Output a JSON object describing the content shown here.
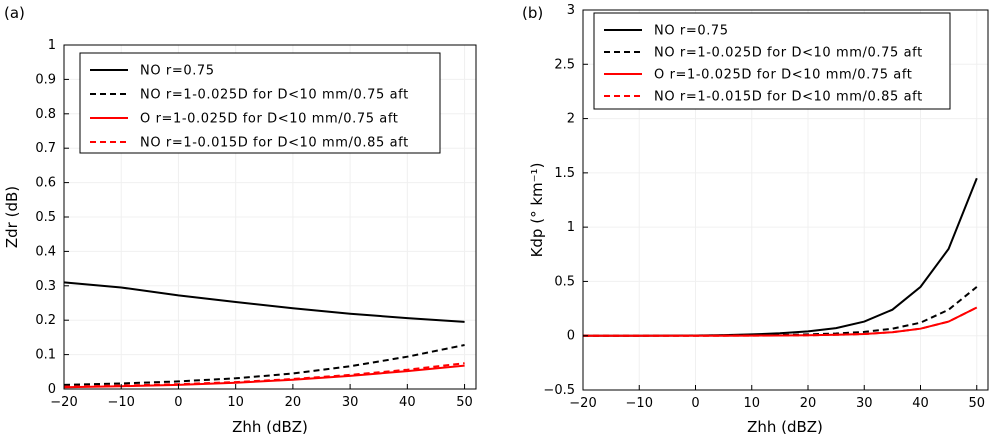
{
  "chart_data": [
    {
      "type": "line",
      "panel_label": "(a)",
      "xlabel": "Zhh (dBZ)",
      "ylabel": "Zdr (dB)",
      "xlim": [
        -20,
        52
      ],
      "ylim": [
        0,
        1
      ],
      "xticks": [
        -20,
        -10,
        0,
        10,
        20,
        30,
        40,
        50
      ],
      "yticks": [
        0,
        0.1,
        0.2,
        0.3,
        0.4,
        0.5,
        0.6,
        0.7,
        0.8,
        0.9,
        1
      ],
      "grid": true,
      "legend_position": "top-right",
      "x": [
        -20,
        -10,
        0,
        10,
        20,
        30,
        40,
        50
      ],
      "series": [
        {
          "name": "NO r=0.75",
          "color": "#000000",
          "dash": "solid",
          "values": [
            0.31,
            0.295,
            0.272,
            0.253,
            0.235,
            0.219,
            0.206,
            0.195
          ]
        },
        {
          "name": "NO r=1-0.025D for D<10 mm/0.75 aft",
          "color": "#000000",
          "dash": "dashed",
          "values": [
            0.012,
            0.016,
            0.022,
            0.031,
            0.045,
            0.066,
            0.094,
            0.128
          ]
        },
        {
          "name": "O r=1-0.025D for D<10 mm/0.75 aft",
          "color": "#ff0000",
          "dash": "solid",
          "values": [
            0.005,
            0.008,
            0.012,
            0.018,
            0.027,
            0.038,
            0.052,
            0.068
          ]
        },
        {
          "name": "NO r=1-0.015D for D<10 mm/0.85 aft",
          "color": "#ff0000",
          "dash": "dashed",
          "values": [
            0.007,
            0.01,
            0.014,
            0.02,
            0.029,
            0.041,
            0.056,
            0.075
          ]
        }
      ]
    },
    {
      "type": "line",
      "panel_label": "(b)",
      "xlabel": "Zhh (dBZ)",
      "ylabel": "Kdp (° km⁻¹)",
      "xlim": [
        -20,
        52
      ],
      "ylim": [
        -0.5,
        3
      ],
      "xticks": [
        -20,
        -10,
        0,
        10,
        20,
        30,
        40,
        50
      ],
      "yticks": [
        -0.5,
        0,
        0.5,
        1,
        1.5,
        2,
        2.5,
        3
      ],
      "grid": true,
      "legend_position": "top-right",
      "x": [
        -20,
        -10,
        0,
        5,
        10,
        15,
        20,
        25,
        30,
        35,
        40,
        45,
        50
      ],
      "series": [
        {
          "name": "NO r=0.75",
          "color": "#000000",
          "dash": "solid",
          "values": [
            0,
            0,
            0.002,
            0.006,
            0.012,
            0.022,
            0.04,
            0.07,
            0.13,
            0.24,
            0.45,
            0.8,
            1.45
          ]
        },
        {
          "name": "NO r=1-0.025D for D<10 mm/0.75 aft",
          "color": "#000000",
          "dash": "dashed",
          "values": [
            0,
            0,
            0.001,
            0.002,
            0.004,
            0.007,
            0.012,
            0.02,
            0.035,
            0.065,
            0.12,
            0.24,
            0.45
          ]
        },
        {
          "name": "O r=1-0.025D for D<10 mm/0.75 aft",
          "color": "#ff0000",
          "dash": "solid",
          "values": [
            0,
            0,
            0,
            0,
            0.001,
            0.002,
            0.004,
            0.008,
            0.016,
            0.032,
            0.065,
            0.13,
            0.26
          ]
        },
        {
          "name": "NO r=1-0.015D for D<10 mm/0.85 aft",
          "color": "#ff0000",
          "dash": "dashed",
          "values": [
            0,
            0,
            0,
            0,
            0.001,
            0.002,
            0.004,
            0.008,
            0.016,
            0.032,
            0.065,
            0.13,
            0.26
          ]
        }
      ]
    }
  ]
}
